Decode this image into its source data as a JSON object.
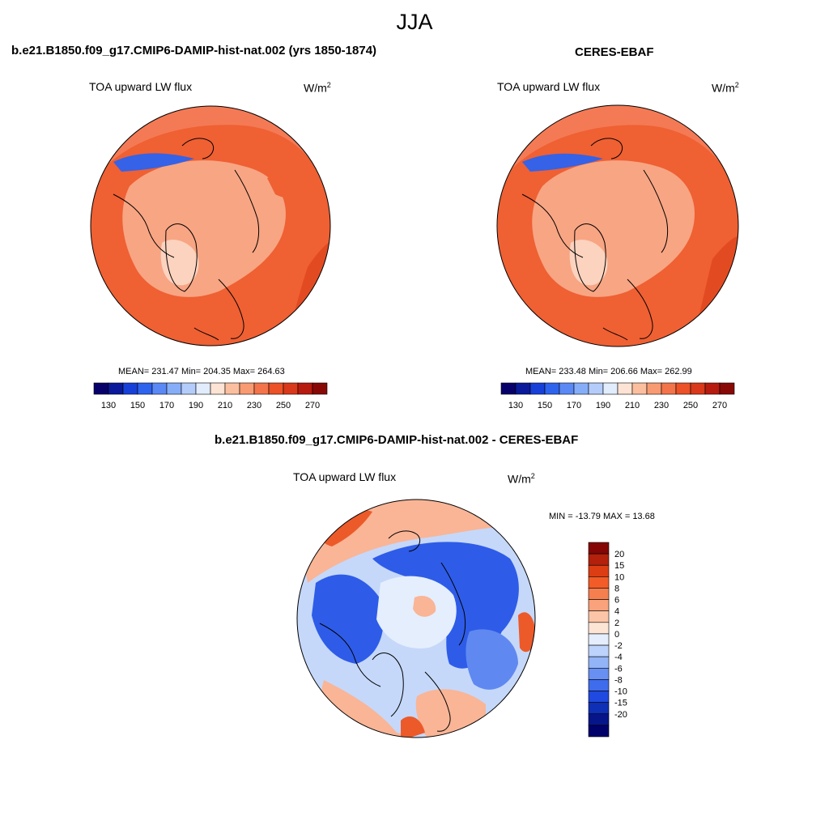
{
  "season": "JJA",
  "panels": [
    {
      "title": "b.e21.B1850.f09_g17.CMIP6-DAMIP-hist-nat.002 (yrs 1850-1874)",
      "variable": "TOA upward LW flux",
      "units_base": "W/m",
      "units_exp": "2",
      "stats": "MEAN= 231.47  Min= 204.35  Max= 264.63"
    },
    {
      "title": "CERES-EBAF",
      "variable": "TOA upward LW flux",
      "units_base": "W/m",
      "units_exp": "2",
      "stats": "MEAN= 233.48  Min= 206.66  Max= 262.99"
    },
    {
      "title": "b.e21.B1850.f09_g17.CMIP6-DAMIP-hist-nat.002 - CERES-EBAF",
      "variable": "TOA upward LW flux",
      "units_base": "W/m",
      "units_exp": "2",
      "stats": "MIN = -13.79 MAX =  13.68"
    }
  ],
  "abs_colorbar": {
    "colors": [
      "#08006a",
      "#0a1a9a",
      "#1740d8",
      "#2e63ee",
      "#5a89f5",
      "#86aef8",
      "#b4ccfa",
      "#e1ecfd",
      "#fde3d3",
      "#fbbf9f",
      "#f89a72",
      "#f3744a",
      "#ec5127",
      "#d9381a",
      "#b71a0f",
      "#880806"
    ],
    "tick_labels": [
      "130",
      "150",
      "170",
      "190",
      "210",
      "230",
      "250",
      "270"
    ]
  },
  "diff_colorbar": {
    "colors": [
      "#850505",
      "#b3200b",
      "#dd3d13",
      "#f35c26",
      "#f67f4f",
      "#f9a27c",
      "#fcc5a8",
      "#fde5d6",
      "#e4eefd",
      "#bed3fb",
      "#93b4f7",
      "#6790f2",
      "#3f6cec",
      "#1f49e0",
      "#0f2fb6",
      "#06158a",
      "#01016b"
    ],
    "tick_labels": [
      "20",
      "15",
      "10",
      "8",
      "6",
      "4",
      "2",
      "0",
      "-2",
      "-4",
      "-6",
      "-8",
      "-10",
      "-15",
      "-20"
    ]
  },
  "map_colors": {
    "abs_base": "#f47a55",
    "abs_band": "#ef6033",
    "abs_dark": "#e24b22",
    "abs_light": "#f8a583",
    "abs_pale": "#fbd3bf",
    "abs_blue": "#3562e6",
    "diff_base": "#c5d8fa",
    "diff_light": "#e4eefd",
    "diff_blue": "#2e5ce8",
    "diff_blue_mid": "#5f89f0",
    "diff_pos": "#f9b596",
    "diff_pos_strong": "#ec5a2a"
  }
}
